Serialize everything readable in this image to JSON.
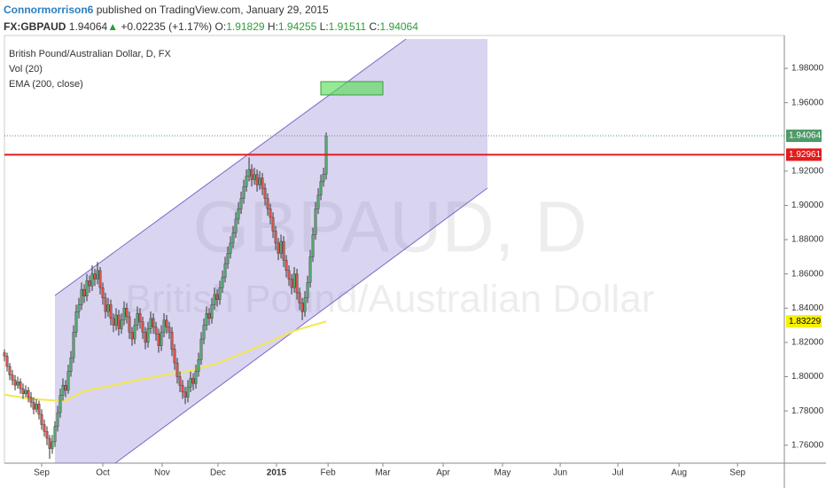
{
  "chart_data": {
    "type": "candlestick",
    "header": {
      "author": "Connormorrison6",
      "published": "published on TradingView.com, January 29, 2015",
      "symbol": "FX:GBPAUD",
      "arrow": "▲",
      "change": "+0.02235 (+1.17%)",
      "o_label": "O:",
      "h_label": "H:",
      "l_label": "L:",
      "c_label": "C:"
    },
    "title": "British Pound/Australian Dollar, D, FX",
    "volume_label": "Vol (20)",
    "watermark": [
      "GBPAUD, D",
      "British Pound/Australian Dollar"
    ],
    "up_color": "#53a870",
    "down_color": "#d9534a",
    "xlim": [
      0,
      293.3
    ],
    "ylim": [
      1.7495,
      1.9992
    ],
    "grid": false,
    "xticks": [
      {
        "value": 14,
        "label": "Sep"
      },
      {
        "value": 37,
        "label": "Oct"
      },
      {
        "value": 59.3,
        "label": "Nov"
      },
      {
        "value": 80.3,
        "label": "Dec"
      },
      {
        "value": 102.3,
        "label": "2015"
      },
      {
        "value": 121.7,
        "label": "Feb"
      },
      {
        "value": 142.3,
        "label": "Mar"
      },
      {
        "value": 165,
        "label": "Apr"
      },
      {
        "value": 187.3,
        "label": "May"
      },
      {
        "value": 209,
        "label": "Jun"
      },
      {
        "value": 230.7,
        "label": "Jul"
      },
      {
        "value": 253.7,
        "label": "Aug"
      },
      {
        "value": 275.7,
        "label": "Sep"
      }
    ],
    "yticks": [
      {
        "value": 1.76,
        "label": "1.76000"
      },
      {
        "value": 1.78,
        "label": "1.78000"
      },
      {
        "value": 1.8,
        "label": "1.80000"
      },
      {
        "value": 1.82,
        "label": "1.82000"
      },
      {
        "value": 1.84,
        "label": "1.84000"
      },
      {
        "value": 1.86,
        "label": "1.86000"
      },
      {
        "value": 1.88,
        "label": "1.88000"
      },
      {
        "value": 1.9,
        "label": "1.90000"
      },
      {
        "value": 1.92,
        "label": "1.92000"
      },
      {
        "value": 1.96,
        "label": "1.96000"
      },
      {
        "value": 1.98,
        "label": "1.98000"
      }
    ],
    "x": [
      0,
      1,
      2,
      3,
      4,
      5,
      6,
      7,
      8,
      9,
      10,
      11,
      12,
      13,
      14,
      15,
      16,
      17,
      18,
      19,
      20,
      21,
      22,
      23,
      24,
      25,
      26,
      27,
      28,
      29,
      30,
      31,
      32,
      33,
      34,
      35,
      36,
      37,
      38,
      39,
      40,
      41,
      42,
      43,
      44,
      45,
      46,
      47,
      48,
      49,
      50,
      51,
      52,
      53,
      54,
      55,
      56,
      57,
      58,
      59,
      60,
      61,
      62,
      63,
      64,
      65,
      66,
      67,
      68,
      69,
      70,
      71,
      72,
      73,
      74,
      75,
      76,
      77,
      78,
      79,
      80,
      81,
      82,
      83,
      84,
      85,
      86,
      87,
      88,
      89,
      90,
      91,
      92,
      93,
      94,
      95,
      96,
      97,
      98,
      99,
      100,
      101,
      102,
      103,
      104,
      105,
      106,
      107,
      108,
      109,
      110,
      111,
      112,
      113,
      114,
      115,
      116,
      117,
      118,
      119,
      120,
      121
    ],
    "ohlc": [
      [
        1.814,
        1.816,
        1.809,
        1.812
      ],
      [
        1.812,
        1.814,
        1.803,
        1.806
      ],
      [
        1.806,
        1.808,
        1.798,
        1.801
      ],
      [
        1.801,
        1.804,
        1.795,
        1.798
      ],
      [
        1.798,
        1.801,
        1.792,
        1.795
      ],
      [
        1.795,
        1.8,
        1.793,
        1.797
      ],
      [
        1.797,
        1.799,
        1.79,
        1.793
      ],
      [
        1.793,
        1.796,
        1.787,
        1.79
      ],
      [
        1.79,
        1.795,
        1.788,
        1.792
      ],
      [
        1.792,
        1.794,
        1.785,
        1.788
      ],
      [
        1.788,
        1.791,
        1.782,
        1.785
      ],
      [
        1.785,
        1.788,
        1.778,
        1.781
      ],
      [
        1.781,
        1.787,
        1.779,
        1.784
      ],
      [
        1.784,
        1.786,
        1.775,
        1.778
      ],
      [
        1.778,
        1.781,
        1.769,
        1.772
      ],
      [
        1.772,
        1.775,
        1.765,
        1.768
      ],
      [
        1.768,
        1.771,
        1.76,
        1.764
      ],
      [
        1.764,
        1.766,
        1.752,
        1.758
      ],
      [
        1.758,
        1.766,
        1.755,
        1.762
      ],
      [
        1.762,
        1.774,
        1.759,
        1.771
      ],
      [
        1.771,
        1.783,
        1.768,
        1.779
      ],
      [
        1.779,
        1.793,
        1.776,
        1.789
      ],
      [
        1.789,
        1.799,
        1.786,
        1.795
      ],
      [
        1.795,
        1.798,
        1.788,
        1.792
      ],
      [
        1.792,
        1.807,
        1.79,
        1.803
      ],
      [
        1.803,
        1.815,
        1.8,
        1.811
      ],
      [
        1.811,
        1.83,
        1.808,
        1.826
      ],
      [
        1.826,
        1.842,
        1.823,
        1.838
      ],
      [
        1.838,
        1.846,
        1.834,
        1.842
      ],
      [
        1.842,
        1.855,
        1.839,
        1.851
      ],
      [
        1.851,
        1.854,
        1.843,
        1.847
      ],
      [
        1.847,
        1.86,
        1.844,
        1.856
      ],
      [
        1.856,
        1.859,
        1.849,
        1.853
      ],
      [
        1.853,
        1.865,
        1.85,
        1.86
      ],
      [
        1.86,
        1.863,
        1.853,
        1.857
      ],
      [
        1.857,
        1.867,
        1.854,
        1.862
      ],
      [
        1.862,
        1.864,
        1.848,
        1.852
      ],
      [
        1.852,
        1.855,
        1.842,
        1.846
      ],
      [
        1.846,
        1.849,
        1.834,
        1.838
      ],
      [
        1.838,
        1.846,
        1.835,
        1.842
      ],
      [
        1.842,
        1.845,
        1.83,
        1.834
      ],
      [
        1.834,
        1.837,
        1.826,
        1.83
      ],
      [
        1.83,
        1.84,
        1.827,
        1.836
      ],
      [
        1.836,
        1.839,
        1.824,
        1.828
      ],
      [
        1.828,
        1.837,
        1.825,
        1.833
      ],
      [
        1.833,
        1.844,
        1.83,
        1.84
      ],
      [
        1.84,
        1.843,
        1.831,
        1.835
      ],
      [
        1.835,
        1.838,
        1.822,
        1.826
      ],
      [
        1.826,
        1.829,
        1.818,
        1.822
      ],
      [
        1.822,
        1.834,
        1.819,
        1.83
      ],
      [
        1.83,
        1.841,
        1.827,
        1.837
      ],
      [
        1.837,
        1.84,
        1.828,
        1.832
      ],
      [
        1.832,
        1.835,
        1.822,
        1.826
      ],
      [
        1.826,
        1.829,
        1.816,
        1.82
      ],
      [
        1.82,
        1.832,
        1.817,
        1.828
      ],
      [
        1.828,
        1.838,
        1.825,
        1.834
      ],
      [
        1.834,
        1.837,
        1.825,
        1.829
      ],
      [
        1.829,
        1.832,
        1.821,
        1.825
      ],
      [
        1.825,
        1.828,
        1.814,
        1.818
      ],
      [
        1.818,
        1.83,
        1.815,
        1.826
      ],
      [
        1.826,
        1.837,
        1.823,
        1.833
      ],
      [
        1.833,
        1.836,
        1.825,
        1.829
      ],
      [
        1.829,
        1.832,
        1.822,
        1.826
      ],
      [
        1.826,
        1.829,
        1.812,
        1.816
      ],
      [
        1.816,
        1.819,
        1.804,
        1.808
      ],
      [
        1.808,
        1.811,
        1.796,
        1.8
      ],
      [
        1.8,
        1.803,
        1.791,
        1.795
      ],
      [
        1.795,
        1.798,
        1.787,
        1.791
      ],
      [
        1.791,
        1.794,
        1.784,
        1.788
      ],
      [
        1.788,
        1.798,
        1.785,
        1.794
      ],
      [
        1.794,
        1.803,
        1.791,
        1.799
      ],
      [
        1.799,
        1.802,
        1.792,
        1.796
      ],
      [
        1.796,
        1.807,
        1.793,
        1.803
      ],
      [
        1.803,
        1.814,
        1.8,
        1.81
      ],
      [
        1.81,
        1.826,
        1.807,
        1.822
      ],
      [
        1.822,
        1.834,
        1.819,
        1.83
      ],
      [
        1.83,
        1.841,
        1.827,
        1.837
      ],
      [
        1.837,
        1.84,
        1.83,
        1.834
      ],
      [
        1.834,
        1.846,
        1.831,
        1.842
      ],
      [
        1.842,
        1.852,
        1.839,
        1.848
      ],
      [
        1.848,
        1.851,
        1.841,
        1.845
      ],
      [
        1.845,
        1.856,
        1.842,
        1.852
      ],
      [
        1.852,
        1.862,
        1.849,
        1.858
      ],
      [
        1.858,
        1.87,
        1.855,
        1.866
      ],
      [
        1.866,
        1.876,
        1.863,
        1.872
      ],
      [
        1.872,
        1.882,
        1.869,
        1.878
      ],
      [
        1.878,
        1.888,
        1.875,
        1.884
      ],
      [
        1.884,
        1.896,
        1.881,
        1.892
      ],
      [
        1.892,
        1.902,
        1.889,
        1.898
      ],
      [
        1.898,
        1.908,
        1.895,
        1.904
      ],
      [
        1.904,
        1.915,
        1.901,
        1.911
      ],
      [
        1.911,
        1.921,
        1.908,
        1.917
      ],
      [
        1.917,
        1.928,
        1.914,
        1.921
      ],
      [
        1.921,
        1.924,
        1.911,
        1.915
      ],
      [
        1.915,
        1.922,
        1.912,
        1.918
      ],
      [
        1.918,
        1.921,
        1.908,
        1.912
      ],
      [
        1.912,
        1.92,
        1.909,
        1.916
      ],
      [
        1.916,
        1.919,
        1.906,
        1.91
      ],
      [
        1.91,
        1.913,
        1.9,
        1.904
      ],
      [
        1.904,
        1.907,
        1.894,
        1.898
      ],
      [
        1.898,
        1.901,
        1.889,
        1.893
      ],
      [
        1.893,
        1.896,
        1.881,
        1.885
      ],
      [
        1.885,
        1.888,
        1.874,
        1.878
      ],
      [
        1.878,
        1.881,
        1.868,
        1.872
      ],
      [
        1.872,
        1.883,
        1.869,
        1.879
      ],
      [
        1.879,
        1.882,
        1.864,
        1.868
      ],
      [
        1.868,
        1.871,
        1.858,
        1.862
      ],
      [
        1.862,
        1.865,
        1.853,
        1.857
      ],
      [
        1.857,
        1.86,
        1.848,
        1.852
      ],
      [
        1.852,
        1.864,
        1.849,
        1.86
      ],
      [
        1.86,
        1.863,
        1.845,
        1.849
      ],
      [
        1.849,
        1.852,
        1.839,
        1.843
      ],
      [
        1.843,
        1.846,
        1.833,
        1.838
      ],
      [
        1.838,
        1.85,
        1.835,
        1.846
      ],
      [
        1.846,
        1.859,
        1.843,
        1.855
      ],
      [
        1.855,
        1.874,
        1.852,
        1.87
      ],
      [
        1.87,
        1.887,
        1.867,
        1.883
      ],
      [
        1.883,
        1.902,
        1.88,
        1.898
      ],
      [
        1.898,
        1.91,
        1.895,
        1.906
      ],
      [
        1.906,
        1.918,
        1.903,
        1.914
      ],
      [
        1.914,
        1.922,
        1.911,
        1.91829
      ],
      [
        1.91829,
        1.94255,
        1.91511,
        1.94064
      ]
    ],
    "ema": {
      "name": "EMA (200, close)",
      "color": "#f2e84c",
      "x": [
        0,
        10,
        20,
        23,
        30,
        40,
        50,
        60,
        70,
        80,
        90,
        100,
        110,
        121
      ],
      "values": [
        1.7895,
        1.787,
        1.786,
        1.786,
        1.7916,
        1.7947,
        1.798,
        1.8009,
        1.8035,
        1.8077,
        1.8139,
        1.8206,
        1.8273,
        1.83229
      ]
    },
    "hline": {
      "value": 1.92961,
      "color": "#e31b1b"
    }
  }
}
